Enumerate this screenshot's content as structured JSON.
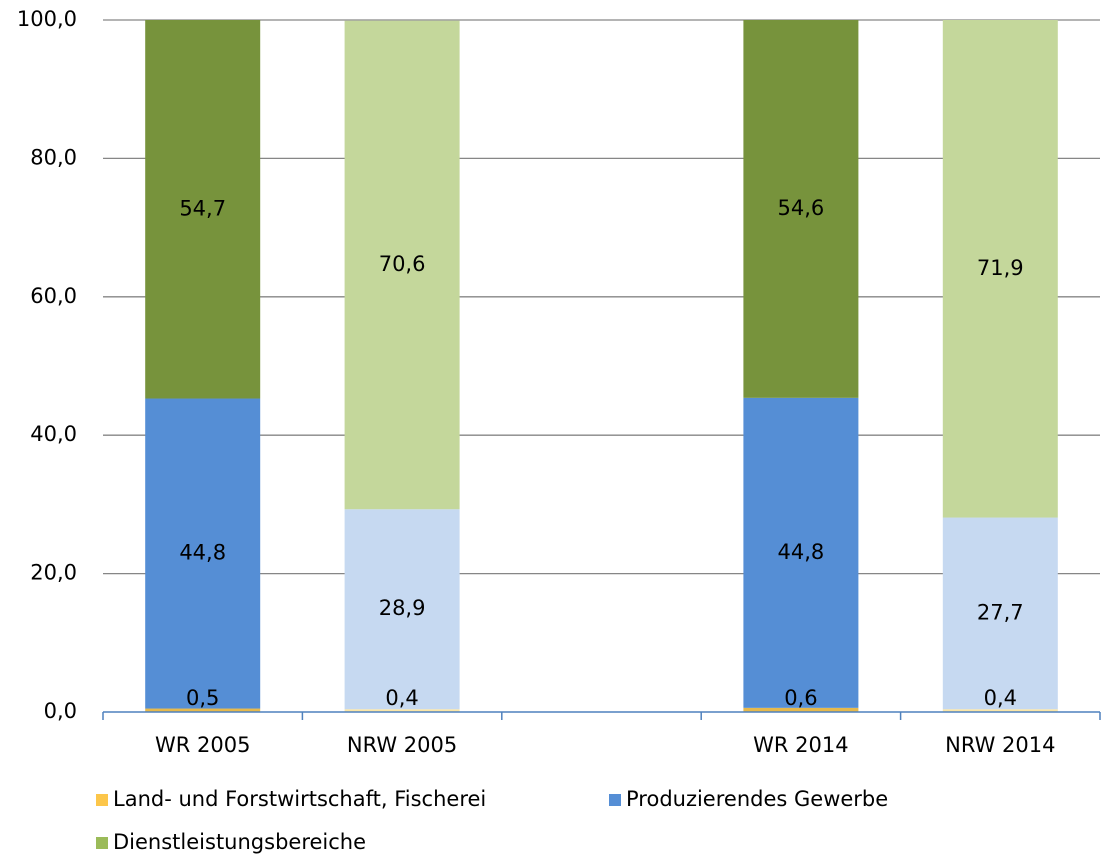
{
  "chart_data": {
    "type": "stacked_bar",
    "categories": [
      "WR 2005",
      "NRW 2005",
      null,
      "WR 2014",
      "NRW 2014"
    ],
    "series": [
      {
        "name": "Land- und Forstwirtschaft, Fischerei",
        "color": "#fcc64a",
        "colors": [
          "#e6b94c",
          "#fbe6a6",
          null,
          "#e6b94c",
          "#fbe6a6"
        ],
        "values": [
          0.5,
          0.4,
          null,
          0.6,
          0.4
        ],
        "value_labels": [
          "0,5",
          "0,4",
          null,
          "0,6",
          "0,4"
        ]
      },
      {
        "name": "Produzierendes Gewerbe",
        "color": "#558ed5",
        "colors": [
          "#558ed5",
          "#c6d9f1",
          null,
          "#558ed5",
          "#c6d9f1"
        ],
        "values": [
          44.8,
          28.9,
          null,
          44.8,
          27.7
        ],
        "value_labels": [
          "44,8",
          "28,9",
          null,
          "44,8",
          "27,7"
        ]
      },
      {
        "name": "Dienstleistungsbereiche",
        "color": "#9bbb59",
        "colors": [
          "#77933c",
          "#c4d79b",
          null,
          "#77933c",
          "#c4d79b"
        ],
        "values": [
          54.7,
          70.6,
          null,
          54.6,
          71.9
        ],
        "value_labels": [
          "54,7",
          "70,6",
          null,
          "54,6",
          "71,9"
        ]
      }
    ],
    "ylim": [
      0,
      100
    ],
    "yticks": [
      {
        "value": 0,
        "label": "0,0"
      },
      {
        "value": 20,
        "label": "20,0"
      },
      {
        "value": 40,
        "label": "40,0"
      },
      {
        "value": 60,
        "label": "60,0"
      },
      {
        "value": 80,
        "label": "80,0"
      },
      {
        "value": 100,
        "label": "100,0"
      }
    ],
    "grid": true,
    "legend": "bottom"
  }
}
